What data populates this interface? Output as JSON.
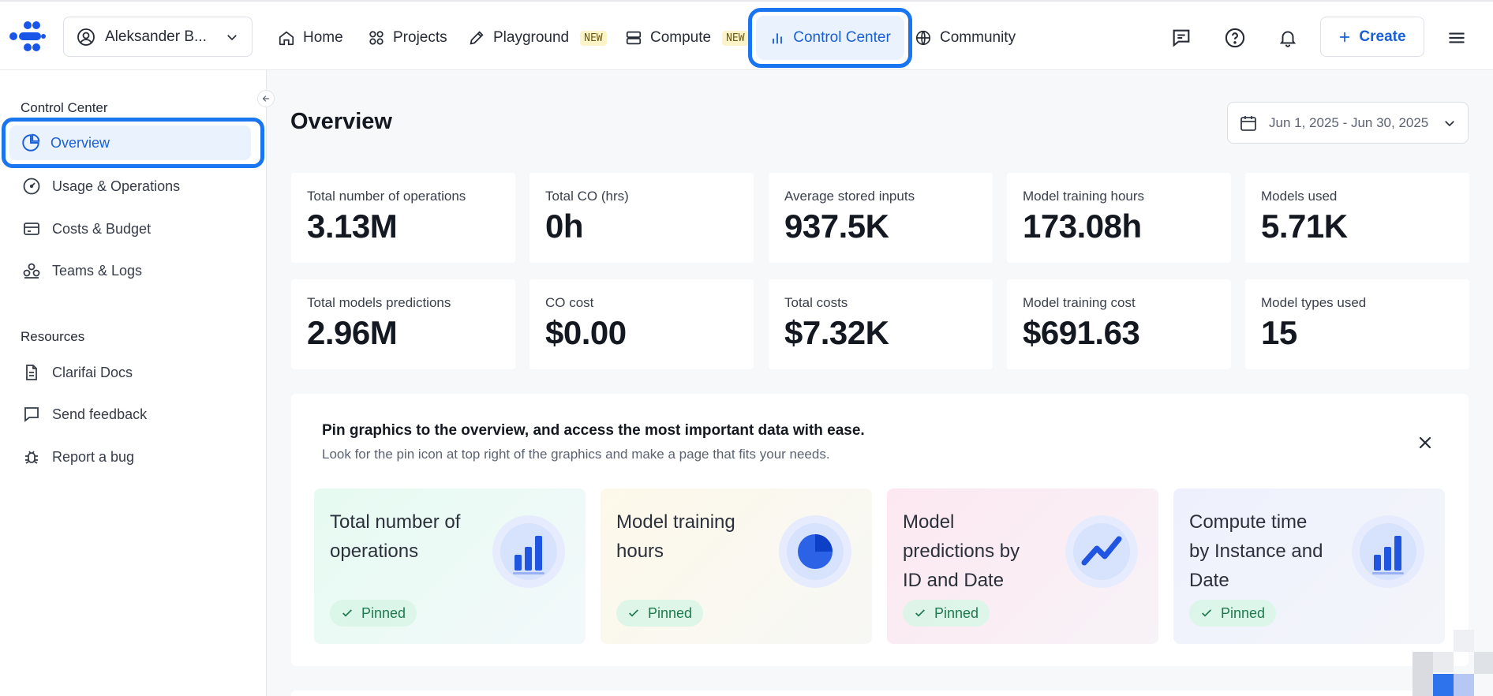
{
  "nav": {
    "user_name": "Aleksander B...",
    "items": [
      {
        "label": "Home",
        "icon": "home-icon"
      },
      {
        "label": "Projects",
        "icon": "grid-icon"
      },
      {
        "label": "Playground",
        "icon": "pencil-icon",
        "badge": "NEW"
      },
      {
        "label": "Compute",
        "icon": "server-icon",
        "badge": "NEW"
      },
      {
        "label": "Control Center",
        "icon": "bar-chart-icon",
        "active": true
      },
      {
        "label": "Community",
        "icon": "globe-icon"
      }
    ],
    "create_label": "Create",
    "accent_color": "#1a5fd6",
    "highlight_color": "#1976f0"
  },
  "sidebar": {
    "section_title": "Control Center",
    "items": [
      {
        "label": "Overview",
        "icon": "pie-chart-icon",
        "active": true
      },
      {
        "label": "Usage & Operations",
        "icon": "gauge-icon"
      },
      {
        "label": "Costs & Budget",
        "icon": "credit-card-icon"
      },
      {
        "label": "Teams & Logs",
        "icon": "team-icon"
      }
    ],
    "resources_title": "Resources",
    "resources": [
      {
        "label": "Clarifai Docs",
        "icon": "document-icon"
      },
      {
        "label": "Send feedback",
        "icon": "message-icon"
      },
      {
        "label": "Report a bug",
        "icon": "bug-icon"
      }
    ]
  },
  "main": {
    "title": "Overview",
    "date_range": "Jun 1, 2025 - Jun 30, 2025",
    "stats": [
      {
        "label": "Total number of operations",
        "value": "3.13M"
      },
      {
        "label": "Total CO (hrs)",
        "value": "0h"
      },
      {
        "label": "Average stored inputs",
        "value": "937.5K"
      },
      {
        "label": "Model training hours",
        "value": "173.08h"
      },
      {
        "label": "Models used",
        "value": "5.71K"
      },
      {
        "label": "Total models predictions",
        "value": "2.96M"
      },
      {
        "label": "CO cost",
        "value": "$0.00"
      },
      {
        "label": "Total costs",
        "value": "$7.32K"
      },
      {
        "label": "Model training cost",
        "value": "$691.63"
      },
      {
        "label": "Model types used",
        "value": "15"
      }
    ],
    "promo": {
      "title": "Pin graphics to the overview, and access the most important data with ease.",
      "subtitle": "Look for the pin icon at top right of the graphics and make a page that fits your needs.",
      "cards": [
        {
          "title": "Total number of operations",
          "status": "Pinned",
          "icon": "bar-chart-icon"
        },
        {
          "title": "Model training hours",
          "status": "Pinned",
          "icon": "pie-chart-icon"
        },
        {
          "title": "Model predictions by ID and Date",
          "status": "Pinned",
          "icon": "line-chart-icon"
        },
        {
          "title": "Compute time by Instance and Date",
          "status": "Pinned",
          "icon": "bar-chart-icon"
        }
      ]
    }
  }
}
